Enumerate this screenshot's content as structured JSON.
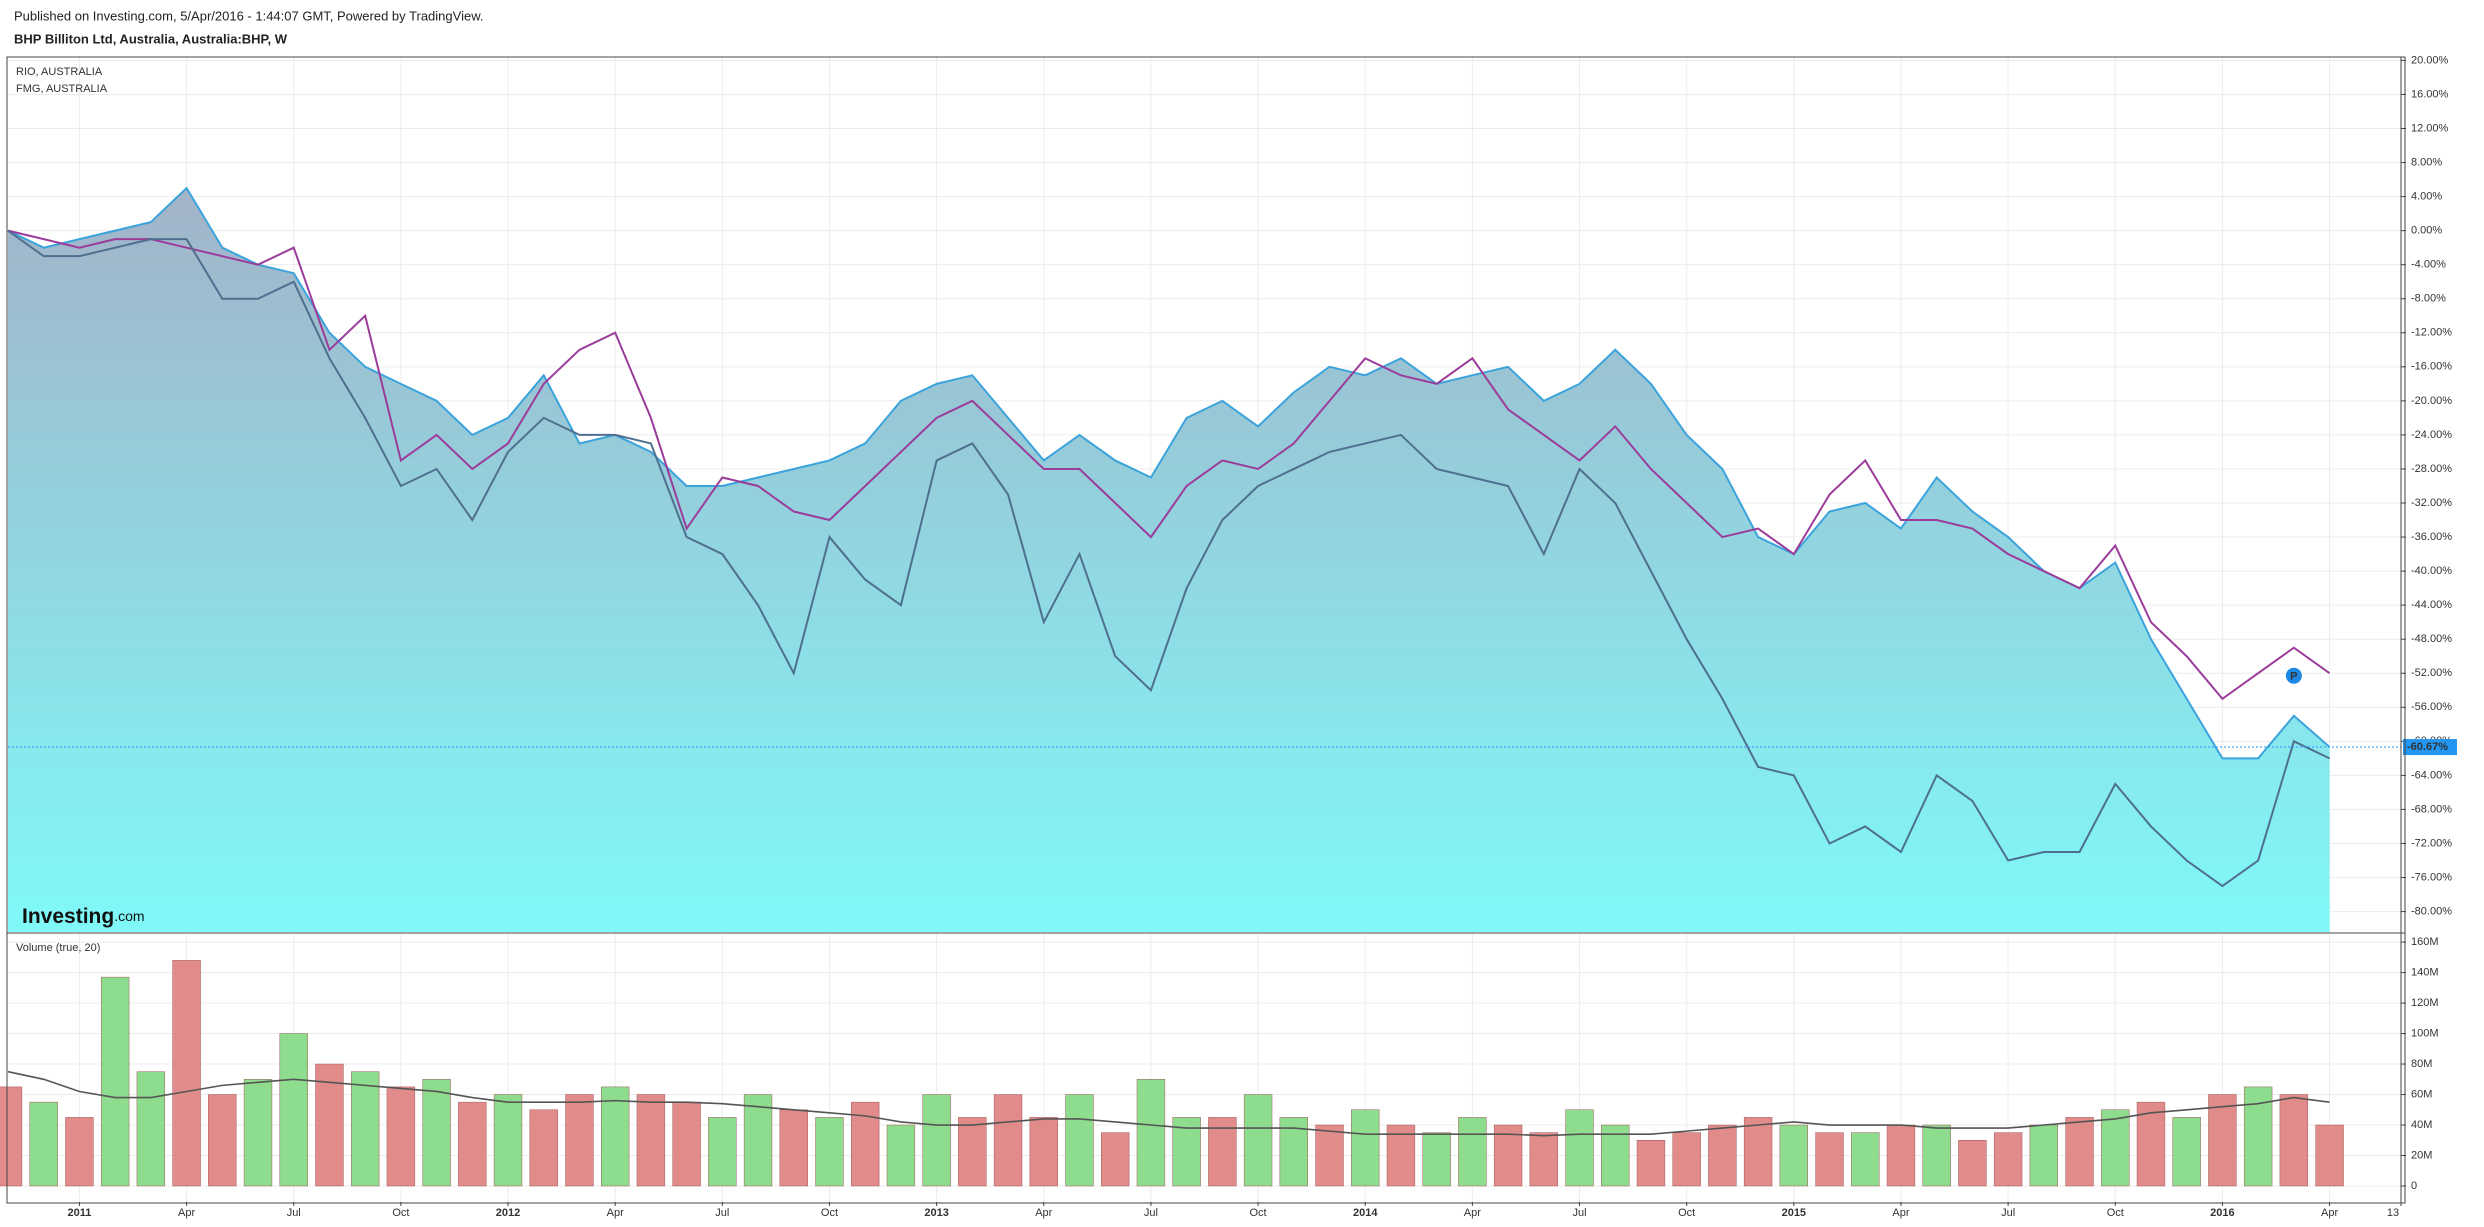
{
  "header": {
    "line1": "Published on Investing.com, 5/Apr/2016 - 1:44:07 GMT, Powered by TradingView.",
    "line2": "BHP Billiton Ltd, Australia, Australia:BHP, W"
  },
  "branding": {
    "brand": "Investing",
    "suffix": ".com"
  },
  "chart_data": [
    {
      "type": "line",
      "grid": true,
      "x": [
        "2010-11",
        "2010-12",
        "2011-01",
        "2011-02",
        "2011-03",
        "2011-04",
        "2011-05",
        "2011-06",
        "2011-07",
        "2011-08",
        "2011-09",
        "2011-10",
        "2011-11",
        "2011-12",
        "2012-01",
        "2012-02",
        "2012-03",
        "2012-04",
        "2012-05",
        "2012-06",
        "2012-07",
        "2012-08",
        "2012-09",
        "2012-10",
        "2012-11",
        "2012-12",
        "2013-01",
        "2013-02",
        "2013-03",
        "2013-04",
        "2013-05",
        "2013-06",
        "2013-07",
        "2013-08",
        "2013-09",
        "2013-10",
        "2013-11",
        "2013-12",
        "2014-01",
        "2014-02",
        "2014-03",
        "2014-04",
        "2014-05",
        "2014-06",
        "2014-07",
        "2014-08",
        "2014-09",
        "2014-10",
        "2014-11",
        "2014-12",
        "2015-01",
        "2015-02",
        "2015-03",
        "2015-04",
        "2015-05",
        "2015-06",
        "2015-07",
        "2015-08",
        "2015-09",
        "2015-10",
        "2015-11",
        "2015-12",
        "2016-01",
        "2016-02",
        "2016-03",
        "2016-04"
      ],
      "xlim": [
        "2010-11",
        "2016-06"
      ],
      "ylim": [
        -82.4,
        20.4
      ],
      "yticks": [
        {
          "value": 20,
          "label": "20.00%"
        },
        {
          "value": 16,
          "label": "16.00%"
        },
        {
          "value": 12,
          "label": "12.00%"
        },
        {
          "value": 8,
          "label": "8.00%"
        },
        {
          "value": 4,
          "label": "4.00%"
        },
        {
          "value": 0,
          "label": "0.00%"
        },
        {
          "value": -4,
          "label": "-4.00%"
        },
        {
          "value": -8,
          "label": "-8.00%"
        },
        {
          "value": -12,
          "label": "-12.00%"
        },
        {
          "value": -16,
          "label": "-16.00%"
        },
        {
          "value": -20,
          "label": "-20.00%"
        },
        {
          "value": -24,
          "label": "-24.00%"
        },
        {
          "value": -28,
          "label": "-28.00%"
        },
        {
          "value": -32,
          "label": "-32.00%"
        },
        {
          "value": -36,
          "label": "-36.00%"
        },
        {
          "value": -40,
          "label": "-40.00%"
        },
        {
          "value": -44,
          "label": "-44.00%"
        },
        {
          "value": -48,
          "label": "-48.00%"
        },
        {
          "value": -52,
          "label": "-52.00%"
        },
        {
          "value": -56,
          "label": "-56.00%"
        },
        {
          "value": -60,
          "label": "-60.00%"
        },
        {
          "value": -64,
          "label": "-64.00%"
        },
        {
          "value": -68,
          "label": "-68.00%"
        },
        {
          "value": -72,
          "label": "-72.00%"
        },
        {
          "value": -76,
          "label": "-76.00%"
        },
        {
          "value": -80,
          "label": "-80.00%"
        }
      ],
      "current": {
        "value": -60.67,
        "label": "-60.67%",
        "color": "#2196f3"
      },
      "marker_label": "P",
      "series": [
        {
          "color": "#3ba3dc",
          "area": true,
          "fill_top": "#a3b3c8",
          "fill_bottom": "#7ff9f9",
          "values": [
            0,
            -2,
            -1,
            0,
            1,
            5,
            -2,
            -4,
            -5,
            -12,
            -16,
            -18,
            -20,
            -24,
            -22,
            -17,
            -25,
            -24,
            -26,
            -30,
            -30,
            -29,
            -28,
            -27,
            -25,
            -20,
            -18,
            -17,
            -22,
            -27,
            -24,
            -27,
            -29,
            -22,
            -20,
            -23,
            -19,
            -16,
            -17,
            -15,
            -18,
            -17,
            -16,
            -20,
            -18,
            -14,
            -18,
            -24,
            -28,
            -36,
            -38,
            -33,
            -32,
            -35,
            -29,
            -33,
            -36,
            -40,
            -42,
            -39,
            -48,
            -55,
            -62,
            -62,
            -57,
            -60.67
          ]
        },
        {
          "name": "RIO, AUSTRALIA",
          "color": "#9b3c9b",
          "values": [
            0,
            -1,
            -2,
            -1,
            -1,
            -2,
            -3,
            -4,
            -2,
            -14,
            -10,
            -27,
            -24,
            -28,
            -25,
            -18,
            -14,
            -12,
            -22,
            -35,
            -29,
            -30,
            -33,
            -34,
            -30,
            -26,
            -22,
            -20,
            -24,
            -28,
            -28,
            -32,
            -36,
            -30,
            -27,
            -28,
            -25,
            -20,
            -15,
            -17,
            -18,
            -15,
            -21,
            -24,
            -27,
            -23,
            -28,
            -32,
            -36,
            -35,
            -38,
            -31,
            -27,
            -34,
            -34,
            -35,
            -38,
            -40,
            -42,
            -37,
            -46,
            -50,
            -55,
            -52,
            -49,
            -52
          ]
        },
        {
          "name": "FMG, AUSTRALIA",
          "color": "#4f6f8f",
          "values": [
            0,
            -3,
            -3,
            -2,
            -1,
            -1,
            -8,
            -8,
            -6,
            -15,
            -22,
            -30,
            -28,
            -34,
            -26,
            -22,
            -24,
            -24,
            -25,
            -36,
            -38,
            -44,
            -52,
            -36,
            -41,
            -44,
            -27,
            -25,
            -31,
            -46,
            -38,
            -50,
            -54,
            -42,
            -34,
            -30,
            -28,
            -26,
            -25,
            -24,
            -28,
            -29,
            -30,
            -38,
            -28,
            -32,
            -40,
            -48,
            -55,
            -63,
            -64,
            -72,
            -70,
            -73,
            -64,
            -67,
            -74,
            -73,
            -73,
            -65,
            -70,
            -74,
            -77,
            -74,
            -60,
            -62
          ]
        }
      ]
    },
    {
      "type": "bar",
      "title": "Volume (true, 20)",
      "grid": true,
      "x": [
        "2010-11",
        "2010-12",
        "2011-01",
        "2011-02",
        "2011-03",
        "2011-04",
        "2011-05",
        "2011-06",
        "2011-07",
        "2011-08",
        "2011-09",
        "2011-10",
        "2011-11",
        "2011-12",
        "2012-01",
        "2012-02",
        "2012-03",
        "2012-04",
        "2012-05",
        "2012-06",
        "2012-07",
        "2012-08",
        "2012-09",
        "2012-10",
        "2012-11",
        "2012-12",
        "2013-01",
        "2013-02",
        "2013-03",
        "2013-04",
        "2013-05",
        "2013-06",
        "2013-07",
        "2013-08",
        "2013-09",
        "2013-10",
        "2013-11",
        "2013-12",
        "2014-01",
        "2014-02",
        "2014-03",
        "2014-04",
        "2014-05",
        "2014-06",
        "2014-07",
        "2014-08",
        "2014-09",
        "2014-10",
        "2014-11",
        "2014-12",
        "2015-01",
        "2015-02",
        "2015-03",
        "2015-04",
        "2015-05",
        "2015-06",
        "2015-07",
        "2015-08",
        "2015-09",
        "2015-10",
        "2015-11",
        "2015-12",
        "2016-01",
        "2016-02",
        "2016-03",
        "2016-04"
      ],
      "xlim": [
        "2010-11",
        "2016-06"
      ],
      "xticks": [
        {
          "value": "2011-01",
          "label": "2011"
        },
        {
          "value": "2011-04",
          "label": "Apr"
        },
        {
          "value": "2011-07",
          "label": "Jul"
        },
        {
          "value": "2011-10",
          "label": "Oct"
        },
        {
          "value": "2012-01",
          "label": "2012"
        },
        {
          "value": "2012-04",
          "label": "Apr"
        },
        {
          "value": "2012-07",
          "label": "Jul"
        },
        {
          "value": "2012-10",
          "label": "Oct"
        },
        {
          "value": "2013-01",
          "label": "2013"
        },
        {
          "value": "2013-04",
          "label": "Apr"
        },
        {
          "value": "2013-07",
          "label": "Jul"
        },
        {
          "value": "2013-10",
          "label": "Oct"
        },
        {
          "value": "2014-01",
          "label": "2014"
        },
        {
          "value": "2014-04",
          "label": "Apr"
        },
        {
          "value": "2014-07",
          "label": "Jul"
        },
        {
          "value": "2014-10",
          "label": "Oct"
        },
        {
          "value": "2015-01",
          "label": "2015"
        },
        {
          "value": "2015-04",
          "label": "Apr"
        },
        {
          "value": "2015-07",
          "label": "Jul"
        },
        {
          "value": "2015-10",
          "label": "Oct"
        },
        {
          "value": "2016-01",
          "label": "2016"
        },
        {
          "value": "2016-04",
          "label": "Apr"
        },
        {
          "value": "2016-06",
          "label": "13"
        }
      ],
      "ylim": [
        -10.5,
        165.3
      ],
      "yticks": [
        0,
        {
          "value": 20,
          "label": "20M"
        },
        {
          "value": 40,
          "label": "40M"
        },
        {
          "value": 60,
          "label": "60M"
        },
        {
          "value": 80,
          "label": "80M"
        },
        {
          "value": 100,
          "label": "100M"
        },
        {
          "value": 120,
          "label": "120M"
        },
        {
          "value": 140,
          "label": "140M"
        },
        {
          "value": 160,
          "label": "160M"
        }
      ],
      "values": [
        65,
        55,
        45,
        137,
        75,
        148,
        60,
        70,
        100,
        80,
        75,
        65,
        70,
        55,
        60,
        50,
        60,
        65,
        60,
        55,
        45,
        60,
        50,
        45,
        55,
        40,
        60,
        45,
        60,
        45,
        60,
        35,
        70,
        45,
        45,
        60,
        45,
        40,
        50,
        40,
        35,
        45,
        40,
        35,
        50,
        40,
        30,
        35,
        40,
        45,
        40,
        35,
        35,
        40,
        40,
        30,
        35,
        40,
        45,
        50,
        55,
        45,
        60,
        65,
        60,
        40
      ],
      "colors": [
        "#e28b8b",
        "#8edc8e",
        "#e28b8b",
        "#8edc8e",
        "#8edc8e",
        "#e28b8b",
        "#e28b8b",
        "#8edc8e",
        "#8edc8e",
        "#e28b8b",
        "#8edc8e",
        "#e28b8b",
        "#8edc8e",
        "#e28b8b",
        "#8edc8e",
        "#e28b8b",
        "#e28b8b",
        "#8edc8e",
        "#e28b8b",
        "#e28b8b",
        "#8edc8e",
        "#8edc8e",
        "#e28b8b",
        "#8edc8e",
        "#e28b8b",
        "#8edc8e",
        "#8edc8e",
        "#e28b8b",
        "#e28b8b",
        "#e28b8b",
        "#8edc8e",
        "#e28b8b",
        "#8edc8e",
        "#8edc8e",
        "#e28b8b",
        "#8edc8e",
        "#8edc8e",
        "#e28b8b",
        "#8edc8e",
        "#e28b8b",
        "#8edc8e",
        "#8edc8e",
        "#e28b8b",
        "#e28b8b",
        "#8edc8e",
        "#8edc8e",
        "#e28b8b",
        "#e28b8b",
        "#e28b8b",
        "#e28b8b",
        "#8edc8e",
        "#e28b8b",
        "#8edc8e",
        "#e28b8b",
        "#8edc8e",
        "#e28b8b",
        "#e28b8b",
        "#8edc8e",
        "#e28b8b",
        "#8edc8e",
        "#e28b8b",
        "#8edc8e",
        "#e28b8b",
        "#8edc8e",
        "#e28b8b",
        "#e28b8b"
      ],
      "ma": {
        "color": "#555555",
        "values": [
          75,
          70,
          62,
          58,
          58,
          62,
          66,
          68,
          70,
          68,
          66,
          64,
          62,
          58,
          55,
          55,
          55,
          56,
          55,
          55,
          54,
          52,
          50,
          48,
          46,
          42,
          40,
          40,
          42,
          44,
          44,
          42,
          40,
          38,
          38,
          38,
          38,
          36,
          34,
          34,
          34,
          34,
          34,
          33,
          34,
          34,
          34,
          36,
          38,
          40,
          42,
          40,
          40,
          40,
          38,
          38,
          38,
          40,
          42,
          44,
          48,
          50,
          52,
          54,
          58,
          55
        ]
      }
    }
  ]
}
